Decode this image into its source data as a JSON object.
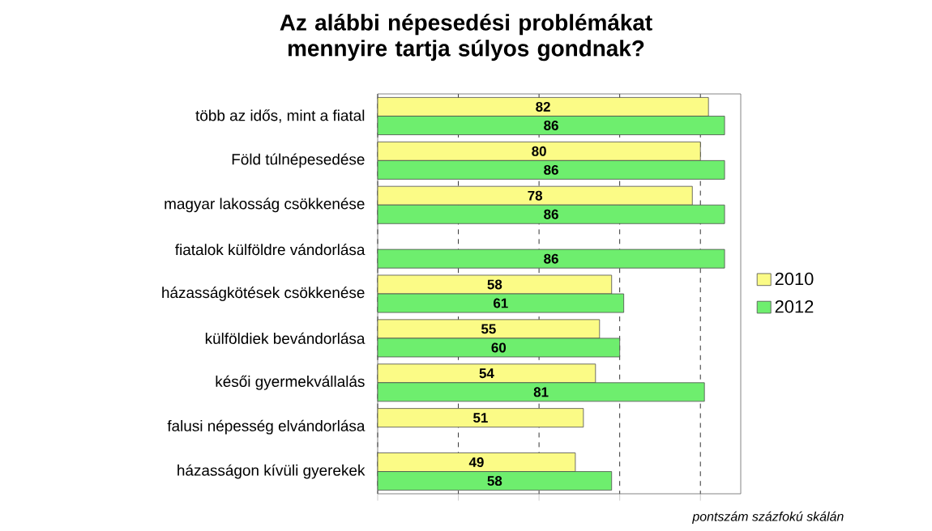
{
  "chart_data": {
    "type": "bar",
    "orientation": "horizontal",
    "title": "Az alábbi népesedési problémákat mennyire tartja súlyos gondnak?",
    "categories": [
      "több az idős, mint a fiatal",
      "Föld túlnépesedése",
      "magyar lakosság csökkenése",
      "fiatalok külföldre vándorlása",
      "házasságkötések csökkenése",
      "külföldiek bevándorlása",
      "késői gyermekvállalás",
      "falusi népesség elvándorlása",
      "házasságon kívüli gyerekek"
    ],
    "series": [
      {
        "name": "2010",
        "color": "#fbfb86",
        "values": [
          82,
          80,
          78,
          null,
          58,
          55,
          54,
          51,
          49
        ]
      },
      {
        "name": "2012",
        "color": "#6eee6e",
        "values": [
          86,
          86,
          86,
          86,
          61,
          60,
          81,
          null,
          58
        ]
      }
    ],
    "xlim": [
      0,
      90
    ],
    "xticks": [
      {
        "value": 0,
        "label": null
      },
      {
        "value": 20,
        "label": null
      },
      {
        "value": 40,
        "label": null
      },
      {
        "value": 60,
        "label": null
      },
      {
        "value": 80,
        "label": null
      }
    ],
    "grid": "x",
    "legend": "right",
    "tick_labels": "y",
    "data_labels": true,
    "annotations": [
      "pontszám százfokú skálán"
    ]
  }
}
